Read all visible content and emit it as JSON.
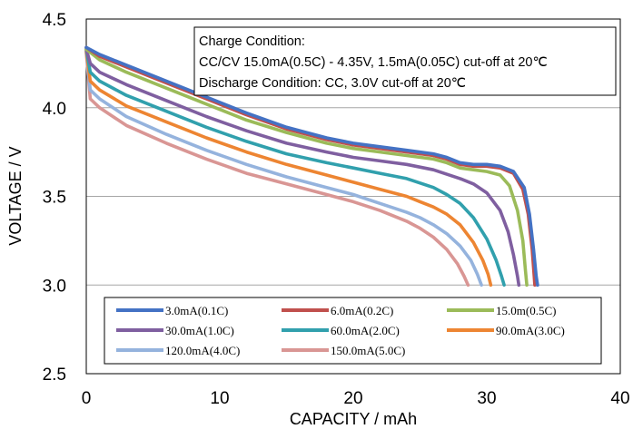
{
  "chart_data": {
    "type": "line",
    "xlabel": "CAPACITY / mAh",
    "ylabel": "VOLTAGE / V",
    "xlim": [
      0,
      40
    ],
    "ylim": [
      2.5,
      4.5
    ],
    "xticks": [
      "0",
      "10",
      "20",
      "30",
      "40"
    ],
    "yticks": [
      "2.5",
      "3.0",
      "3.5",
      "4.0",
      "4.5"
    ],
    "grid": true,
    "annotation": {
      "lines": [
        "Charge Condition:",
        "CC/CV 15.0mA(0.5C) - 4.35V, 1.5mA(0.05C) cut-off at  20℃",
        "Discharge Condition: CC,  3.0V cut-off at 20℃"
      ]
    },
    "legend_position": "bottom",
    "series": [
      {
        "name": "3.0mA(0.1C)",
        "color": "#4472c4",
        "x": [
          0,
          1,
          3,
          6,
          9,
          12,
          15,
          18,
          20,
          22,
          24,
          26,
          27,
          28,
          29,
          30,
          31,
          32,
          32.8,
          33.2,
          33.5,
          33.7,
          33.8
        ],
        "y": [
          4.34,
          4.3,
          4.24,
          4.15,
          4.06,
          3.97,
          3.89,
          3.83,
          3.8,
          3.78,
          3.76,
          3.74,
          3.72,
          3.69,
          3.68,
          3.68,
          3.67,
          3.64,
          3.55,
          3.4,
          3.2,
          3.05,
          3.0
        ]
      },
      {
        "name": "6.0mA(0.2C)",
        "color": "#c0504d",
        "x": [
          0,
          1,
          3,
          6,
          9,
          12,
          15,
          18,
          20,
          22,
          24,
          26,
          27,
          28,
          29,
          30,
          31,
          32,
          32.7,
          33.1,
          33.4,
          33.55,
          33.6
        ],
        "y": [
          4.34,
          4.29,
          4.23,
          4.14,
          4.05,
          3.96,
          3.88,
          3.82,
          3.79,
          3.77,
          3.75,
          3.73,
          3.71,
          3.68,
          3.67,
          3.67,
          3.66,
          3.63,
          3.54,
          3.4,
          3.2,
          3.05,
          3.0
        ]
      },
      {
        "name": "15.0m(0.5C)",
        "color": "#9bbb59",
        "x": [
          0,
          1,
          3,
          6,
          9,
          12,
          15,
          18,
          20,
          22,
          24,
          26,
          27,
          28,
          29,
          30,
          31,
          31.7,
          32.3,
          32.7,
          32.9,
          33.0
        ],
        "y": [
          4.33,
          4.27,
          4.2,
          4.11,
          4.02,
          3.93,
          3.86,
          3.8,
          3.77,
          3.75,
          3.73,
          3.71,
          3.69,
          3.66,
          3.65,
          3.64,
          3.62,
          3.56,
          3.42,
          3.25,
          3.08,
          3.0
        ]
      },
      {
        "name": "30.0mA(1.0C)",
        "color": "#7f5fa0",
        "x": [
          0,
          0.3,
          1,
          3,
          6,
          9,
          12,
          15,
          18,
          20,
          22,
          24,
          26,
          28,
          29,
          30,
          31,
          31.6,
          32.0,
          32.3,
          32.4
        ],
        "y": [
          4.33,
          4.25,
          4.2,
          4.13,
          4.04,
          3.95,
          3.87,
          3.8,
          3.75,
          3.72,
          3.7,
          3.68,
          3.65,
          3.6,
          3.57,
          3.52,
          3.42,
          3.3,
          3.17,
          3.05,
          3.0
        ]
      },
      {
        "name": "60.0mA(2.0C)",
        "color": "#31a0ad",
        "x": [
          0,
          0.3,
          1,
          3,
          6,
          9,
          12,
          15,
          18,
          20,
          22,
          24,
          26,
          27,
          28,
          29,
          30,
          30.7,
          31.1,
          31.3
        ],
        "y": [
          4.33,
          4.2,
          4.15,
          4.07,
          3.98,
          3.89,
          3.81,
          3.74,
          3.69,
          3.66,
          3.63,
          3.6,
          3.55,
          3.51,
          3.46,
          3.38,
          3.26,
          3.14,
          3.05,
          3.0
        ]
      },
      {
        "name": "90.0mA(3.0C)",
        "color": "#ed8532",
        "x": [
          0,
          0.3,
          1,
          3,
          6,
          9,
          12,
          15,
          18,
          20,
          22,
          24,
          25,
          26,
          27,
          28,
          29,
          29.7,
          30.1,
          30.3
        ],
        "y": [
          4.32,
          4.15,
          4.1,
          4.01,
          3.92,
          3.83,
          3.75,
          3.68,
          3.62,
          3.58,
          3.54,
          3.5,
          3.47,
          3.44,
          3.4,
          3.34,
          3.24,
          3.14,
          3.06,
          3.0
        ]
      },
      {
        "name": "120.0mA(4.0C)",
        "color": "#95b3dd",
        "x": [
          0,
          0.3,
          1,
          3,
          6,
          9,
          12,
          15,
          18,
          20,
          22,
          24,
          25,
          26,
          27,
          28,
          28.8,
          29.3,
          29.6
        ],
        "y": [
          4.32,
          4.1,
          4.05,
          3.95,
          3.85,
          3.76,
          3.68,
          3.61,
          3.55,
          3.51,
          3.46,
          3.41,
          3.38,
          3.34,
          3.29,
          3.22,
          3.14,
          3.06,
          3.0
        ]
      },
      {
        "name": "150.0mA(5.0C)",
        "color": "#d99694",
        "x": [
          0,
          0.3,
          1,
          3,
          6,
          9,
          12,
          15,
          18,
          20,
          22,
          24,
          25,
          26,
          27,
          27.8,
          28.3,
          28.6
        ],
        "y": [
          4.31,
          4.05,
          4.0,
          3.9,
          3.8,
          3.71,
          3.63,
          3.57,
          3.51,
          3.47,
          3.42,
          3.36,
          3.32,
          3.27,
          3.2,
          3.12,
          3.05,
          3.0
        ]
      }
    ]
  }
}
